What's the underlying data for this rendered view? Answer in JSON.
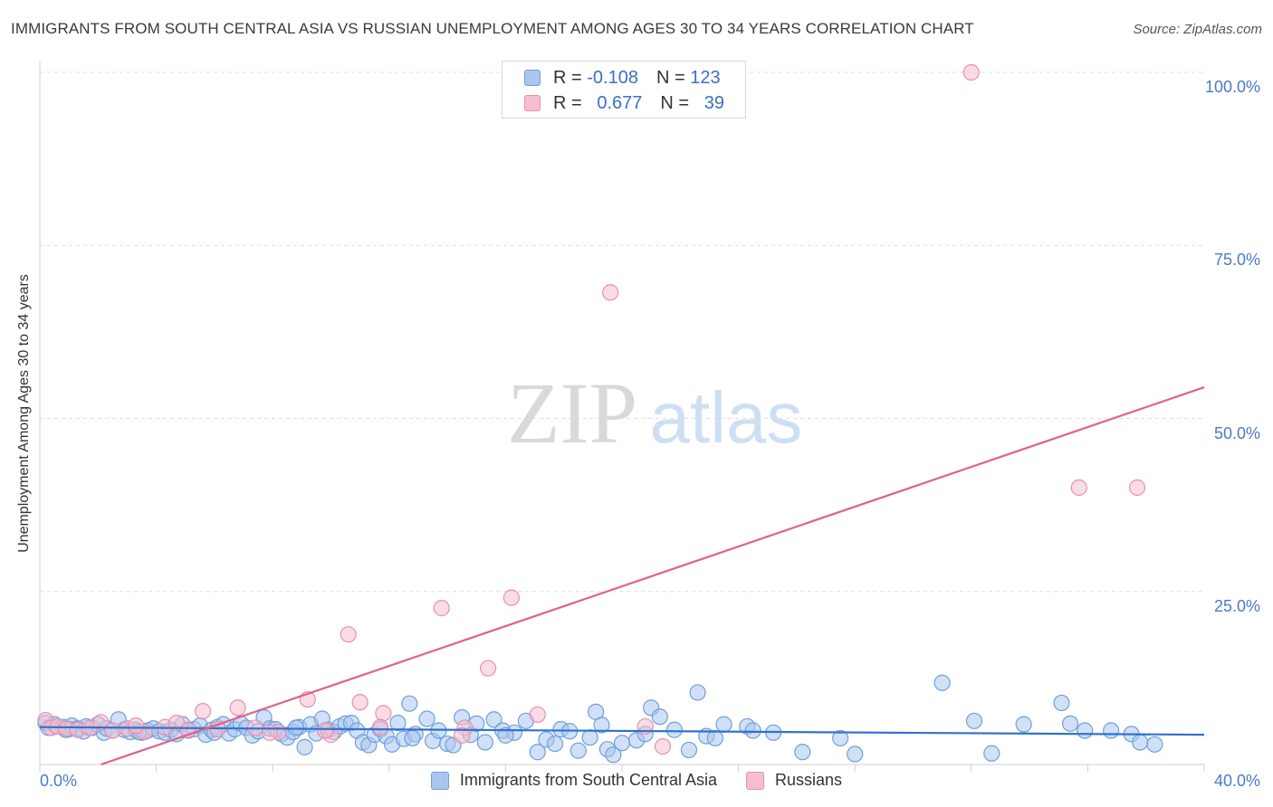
{
  "title": "IMMIGRANTS FROM SOUTH CENTRAL ASIA VS RUSSIAN UNEMPLOYMENT AMONG AGES 30 TO 34 YEARS CORRELATION CHART",
  "source": "Source: ZipAtlas.com",
  "watermark": {
    "zip": "ZIP",
    "atlas": "atlas"
  },
  "colors": {
    "blue_fill": "#a9c6ef",
    "blue_stroke": "#6f9fdc",
    "blue_line": "#2f72d0",
    "pink_fill": "#f6bfd0",
    "pink_stroke": "#e98fae",
    "pink_line": "#e06090",
    "tick_text": "#4a7ac9",
    "grid": "#dddddd"
  },
  "legend": {
    "r_label": "R =",
    "n_label": "N =",
    "series1": {
      "r": "-0.108",
      "n": "123"
    },
    "series2": {
      "r": "0.677",
      "n": "39"
    }
  },
  "chart_data": {
    "type": "scatter",
    "title": "IMMIGRANTS FROM SOUTH CENTRAL ASIA VS RUSSIAN UNEMPLOYMENT AMONG AGES 30 TO 34 YEARS CORRELATION CHART",
    "xlabel": "",
    "ylabel": "Unemployment Among Ages 30 to 34 years",
    "xlim": [
      0,
      40
    ],
    "ylim": [
      0,
      100
    ],
    "x_tick_labels": [
      "0.0%",
      "40.0%"
    ],
    "y_ticks": [
      25,
      50,
      75,
      100
    ],
    "y_tick_labels": [
      "25.0%",
      "50.0%",
      "75.0%",
      "100.0%"
    ],
    "grid": true,
    "legend_position": "top-center",
    "series": [
      {
        "name": "Immigrants from South Central Asia",
        "trend": [
          [
            0,
            5.4
          ],
          [
            40,
            4.3
          ]
        ],
        "points": [
          [
            0.2,
            6.0
          ],
          [
            0.3,
            5.3
          ],
          [
            0.5,
            5.8
          ],
          [
            0.6,
            5.5
          ],
          [
            0.8,
            5.4
          ],
          [
            0.9,
            5.0
          ],
          [
            1.1,
            5.6
          ],
          [
            1.3,
            5.2
          ],
          [
            1.5,
            4.8
          ],
          [
            1.6,
            5.5
          ],
          [
            1.8,
            5.3
          ],
          [
            2.0,
            5.8
          ],
          [
            2.2,
            4.6
          ],
          [
            2.3,
            5.2
          ],
          [
            2.5,
            4.9
          ],
          [
            2.7,
            6.5
          ],
          [
            2.9,
            5.0
          ],
          [
            3.1,
            4.7
          ],
          [
            3.3,
            5.0
          ],
          [
            3.5,
            4.6
          ],
          [
            3.7,
            4.9
          ],
          [
            3.9,
            5.2
          ],
          [
            4.1,
            4.8
          ],
          [
            4.3,
            4.6
          ],
          [
            4.5,
            5.0
          ],
          [
            4.7,
            4.4
          ],
          [
            4.9,
            5.8
          ],
          [
            5.1,
            4.9
          ],
          [
            5.3,
            5.1
          ],
          [
            5.5,
            5.6
          ],
          [
            5.7,
            4.3
          ],
          [
            5.9,
            5.0
          ],
          [
            6.1,
            5.4
          ],
          [
            6.3,
            5.8
          ],
          [
            6.5,
            4.5
          ],
          [
            6.7,
            5.1
          ],
          [
            6.9,
            5.9
          ],
          [
            7.1,
            5.3
          ],
          [
            7.3,
            4.2
          ],
          [
            7.5,
            4.8
          ],
          [
            7.7,
            6.8
          ],
          [
            7.9,
            5.2
          ],
          [
            8.1,
            5.1
          ],
          [
            8.3,
            4.4
          ],
          [
            8.5,
            3.9
          ],
          [
            8.7,
            4.7
          ],
          [
            8.9,
            5.4
          ],
          [
            9.1,
            2.5
          ],
          [
            9.3,
            5.8
          ],
          [
            9.5,
            4.5
          ],
          [
            9.7,
            6.6
          ],
          [
            9.9,
            5.0
          ],
          [
            10.1,
            4.7
          ],
          [
            10.3,
            5.5
          ],
          [
            10.5,
            5.9
          ],
          [
            10.7,
            6.0
          ],
          [
            10.9,
            4.9
          ],
          [
            11.1,
            3.2
          ],
          [
            11.3,
            2.8
          ],
          [
            11.5,
            4.3
          ],
          [
            11.7,
            5.1
          ],
          [
            11.9,
            4.1
          ],
          [
            12.1,
            2.9
          ],
          [
            12.3,
            6.0
          ],
          [
            12.5,
            3.7
          ],
          [
            12.7,
            8.8
          ],
          [
            12.9,
            4.4
          ],
          [
            13.3,
            6.6
          ],
          [
            13.5,
            3.4
          ],
          [
            13.7,
            4.9
          ],
          [
            14.0,
            3.0
          ],
          [
            14.2,
            2.8
          ],
          [
            14.5,
            6.8
          ],
          [
            14.8,
            4.3
          ],
          [
            15.0,
            5.9
          ],
          [
            15.3,
            3.2
          ],
          [
            15.6,
            6.5
          ],
          [
            15.9,
            4.9
          ],
          [
            16.3,
            4.6
          ],
          [
            16.7,
            6.3
          ],
          [
            17.1,
            1.8
          ],
          [
            17.4,
            3.6
          ],
          [
            17.7,
            3.0
          ],
          [
            17.9,
            5.1
          ],
          [
            18.2,
            4.8
          ],
          [
            18.5,
            2.0
          ],
          [
            18.9,
            3.9
          ],
          [
            19.1,
            7.6
          ],
          [
            19.3,
            5.7
          ],
          [
            19.5,
            2.2
          ],
          [
            19.7,
            1.4
          ],
          [
            20.0,
            3.1
          ],
          [
            20.5,
            3.5
          ],
          [
            21.0,
            8.2
          ],
          [
            21.3,
            6.9
          ],
          [
            21.8,
            5.0
          ],
          [
            22.3,
            2.1
          ],
          [
            22.6,
            10.4
          ],
          [
            22.9,
            4.1
          ],
          [
            23.2,
            3.8
          ],
          [
            23.5,
            5.8
          ],
          [
            24.3,
            5.5
          ],
          [
            24.5,
            4.9
          ],
          [
            25.2,
            4.6
          ],
          [
            26.2,
            1.8
          ],
          [
            27.5,
            3.8
          ],
          [
            28.0,
            1.5
          ],
          [
            31.0,
            11.8
          ],
          [
            32.1,
            6.3
          ],
          [
            32.7,
            1.6
          ],
          [
            33.8,
            5.8
          ],
          [
            35.1,
            8.9
          ],
          [
            35.4,
            5.9
          ],
          [
            35.9,
            4.9
          ],
          [
            36.8,
            4.9
          ],
          [
            37.5,
            4.4
          ],
          [
            37.8,
            3.2
          ],
          [
            38.3,
            2.9
          ],
          [
            1.0,
            5.1
          ],
          [
            3.4,
            4.7
          ],
          [
            6.0,
            4.6
          ],
          [
            8.8,
            5.3
          ],
          [
            12.8,
            3.8
          ],
          [
            16.0,
            4.2
          ],
          [
            20.8,
            4.4
          ]
        ]
      },
      {
        "name": "Russians",
        "trend": [
          [
            2.1,
            0
          ],
          [
            40,
            54.5
          ]
        ],
        "points": [
          [
            0.2,
            6.4
          ],
          [
            0.4,
            5.3
          ],
          [
            0.6,
            5.5
          ],
          [
            0.9,
            5.2
          ],
          [
            1.3,
            5.0
          ],
          [
            1.7,
            5.3
          ],
          [
            2.1,
            6.1
          ],
          [
            2.5,
            4.9
          ],
          [
            3.0,
            5.2
          ],
          [
            3.6,
            4.7
          ],
          [
            4.3,
            5.4
          ],
          [
            4.7,
            6.0
          ],
          [
            5.1,
            5.0
          ],
          [
            5.6,
            7.7
          ],
          [
            6.1,
            5.1
          ],
          [
            6.8,
            8.2
          ],
          [
            7.4,
            5.3
          ],
          [
            8.2,
            4.7
          ],
          [
            9.2,
            9.4
          ],
          [
            10.0,
            4.3
          ],
          [
            11.0,
            9.0
          ],
          [
            11.8,
            7.4
          ],
          [
            10.6,
            18.8
          ],
          [
            11.7,
            5.4
          ],
          [
            13.8,
            22.6
          ],
          [
            14.6,
            5.3
          ],
          [
            15.4,
            13.9
          ],
          [
            16.2,
            24.1
          ],
          [
            17.1,
            7.2
          ],
          [
            19.6,
            68.2
          ],
          [
            20.8,
            5.5
          ],
          [
            21.4,
            2.6
          ],
          [
            32.0,
            100.0
          ],
          [
            35.7,
            40.0
          ],
          [
            37.7,
            40.0
          ],
          [
            7.9,
            4.6
          ],
          [
            9.8,
            4.9
          ],
          [
            14.5,
            4.2
          ],
          [
            3.3,
            5.6
          ]
        ]
      }
    ]
  },
  "bottom_legend": [
    "Immigrants from South Central Asia",
    "Russians"
  ]
}
